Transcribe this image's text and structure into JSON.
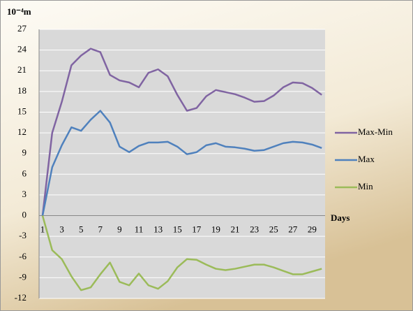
{
  "chart_data": {
    "type": "line",
    "y_label": "10⁻⁴m",
    "x_label": "Days",
    "categories": [
      1,
      null,
      3,
      null,
      5,
      null,
      7,
      null,
      9,
      null,
      11,
      null,
      13,
      null,
      15,
      null,
      17,
      null,
      19,
      null,
      21,
      null,
      23,
      null,
      25,
      null,
      27,
      null,
      29,
      null
    ],
    "series": [
      {
        "name": "Max-Min",
        "color": "#8064a2",
        "values": [
          0,
          12,
          16.5,
          21.8,
          23.2,
          24.2,
          23.7,
          20.4,
          19.6,
          19.3,
          18.6,
          20.7,
          21.2,
          20.2,
          17.5,
          15.2,
          15.6,
          17.3,
          18.2,
          17.9,
          17.6,
          17.1,
          16.5,
          16.6,
          17.4,
          18.6,
          19.3,
          19.2,
          18.5,
          17.5
        ]
      },
      {
        "name": "Max",
        "color": "#4f81bd",
        "values": [
          0,
          7,
          10.2,
          12.8,
          12.3,
          13.9,
          15.2,
          13.5,
          10,
          9.2,
          10.1,
          10.6,
          10.6,
          10.7,
          10,
          8.9,
          9.2,
          10.2,
          10.5,
          10,
          9.9,
          9.7,
          9.4,
          9.5,
          10,
          10.5,
          10.7,
          10.6,
          10.3,
          9.8
        ]
      },
      {
        "name": "Min",
        "color": "#9bbb59",
        "values": [
          0,
          -5,
          -6.3,
          -8.8,
          -10.8,
          -10.4,
          -8.5,
          -6.8,
          -9.6,
          -10.1,
          -8.4,
          -10.1,
          -10.6,
          -9.5,
          -7.5,
          -6.3,
          -6.4,
          -7.1,
          -7.7,
          -7.9,
          -7.7,
          -7.4,
          -7.1,
          -7.1,
          -7.5,
          -8,
          -8.5,
          -8.5,
          -8.1,
          -7.7
        ]
      }
    ],
    "ylim": [
      -12,
      27
    ],
    "yticks": [
      -12,
      -9,
      -6,
      -3,
      0,
      3,
      6,
      9,
      12,
      15,
      18,
      21,
      24,
      27
    ],
    "grid": true,
    "legend": "right"
  }
}
